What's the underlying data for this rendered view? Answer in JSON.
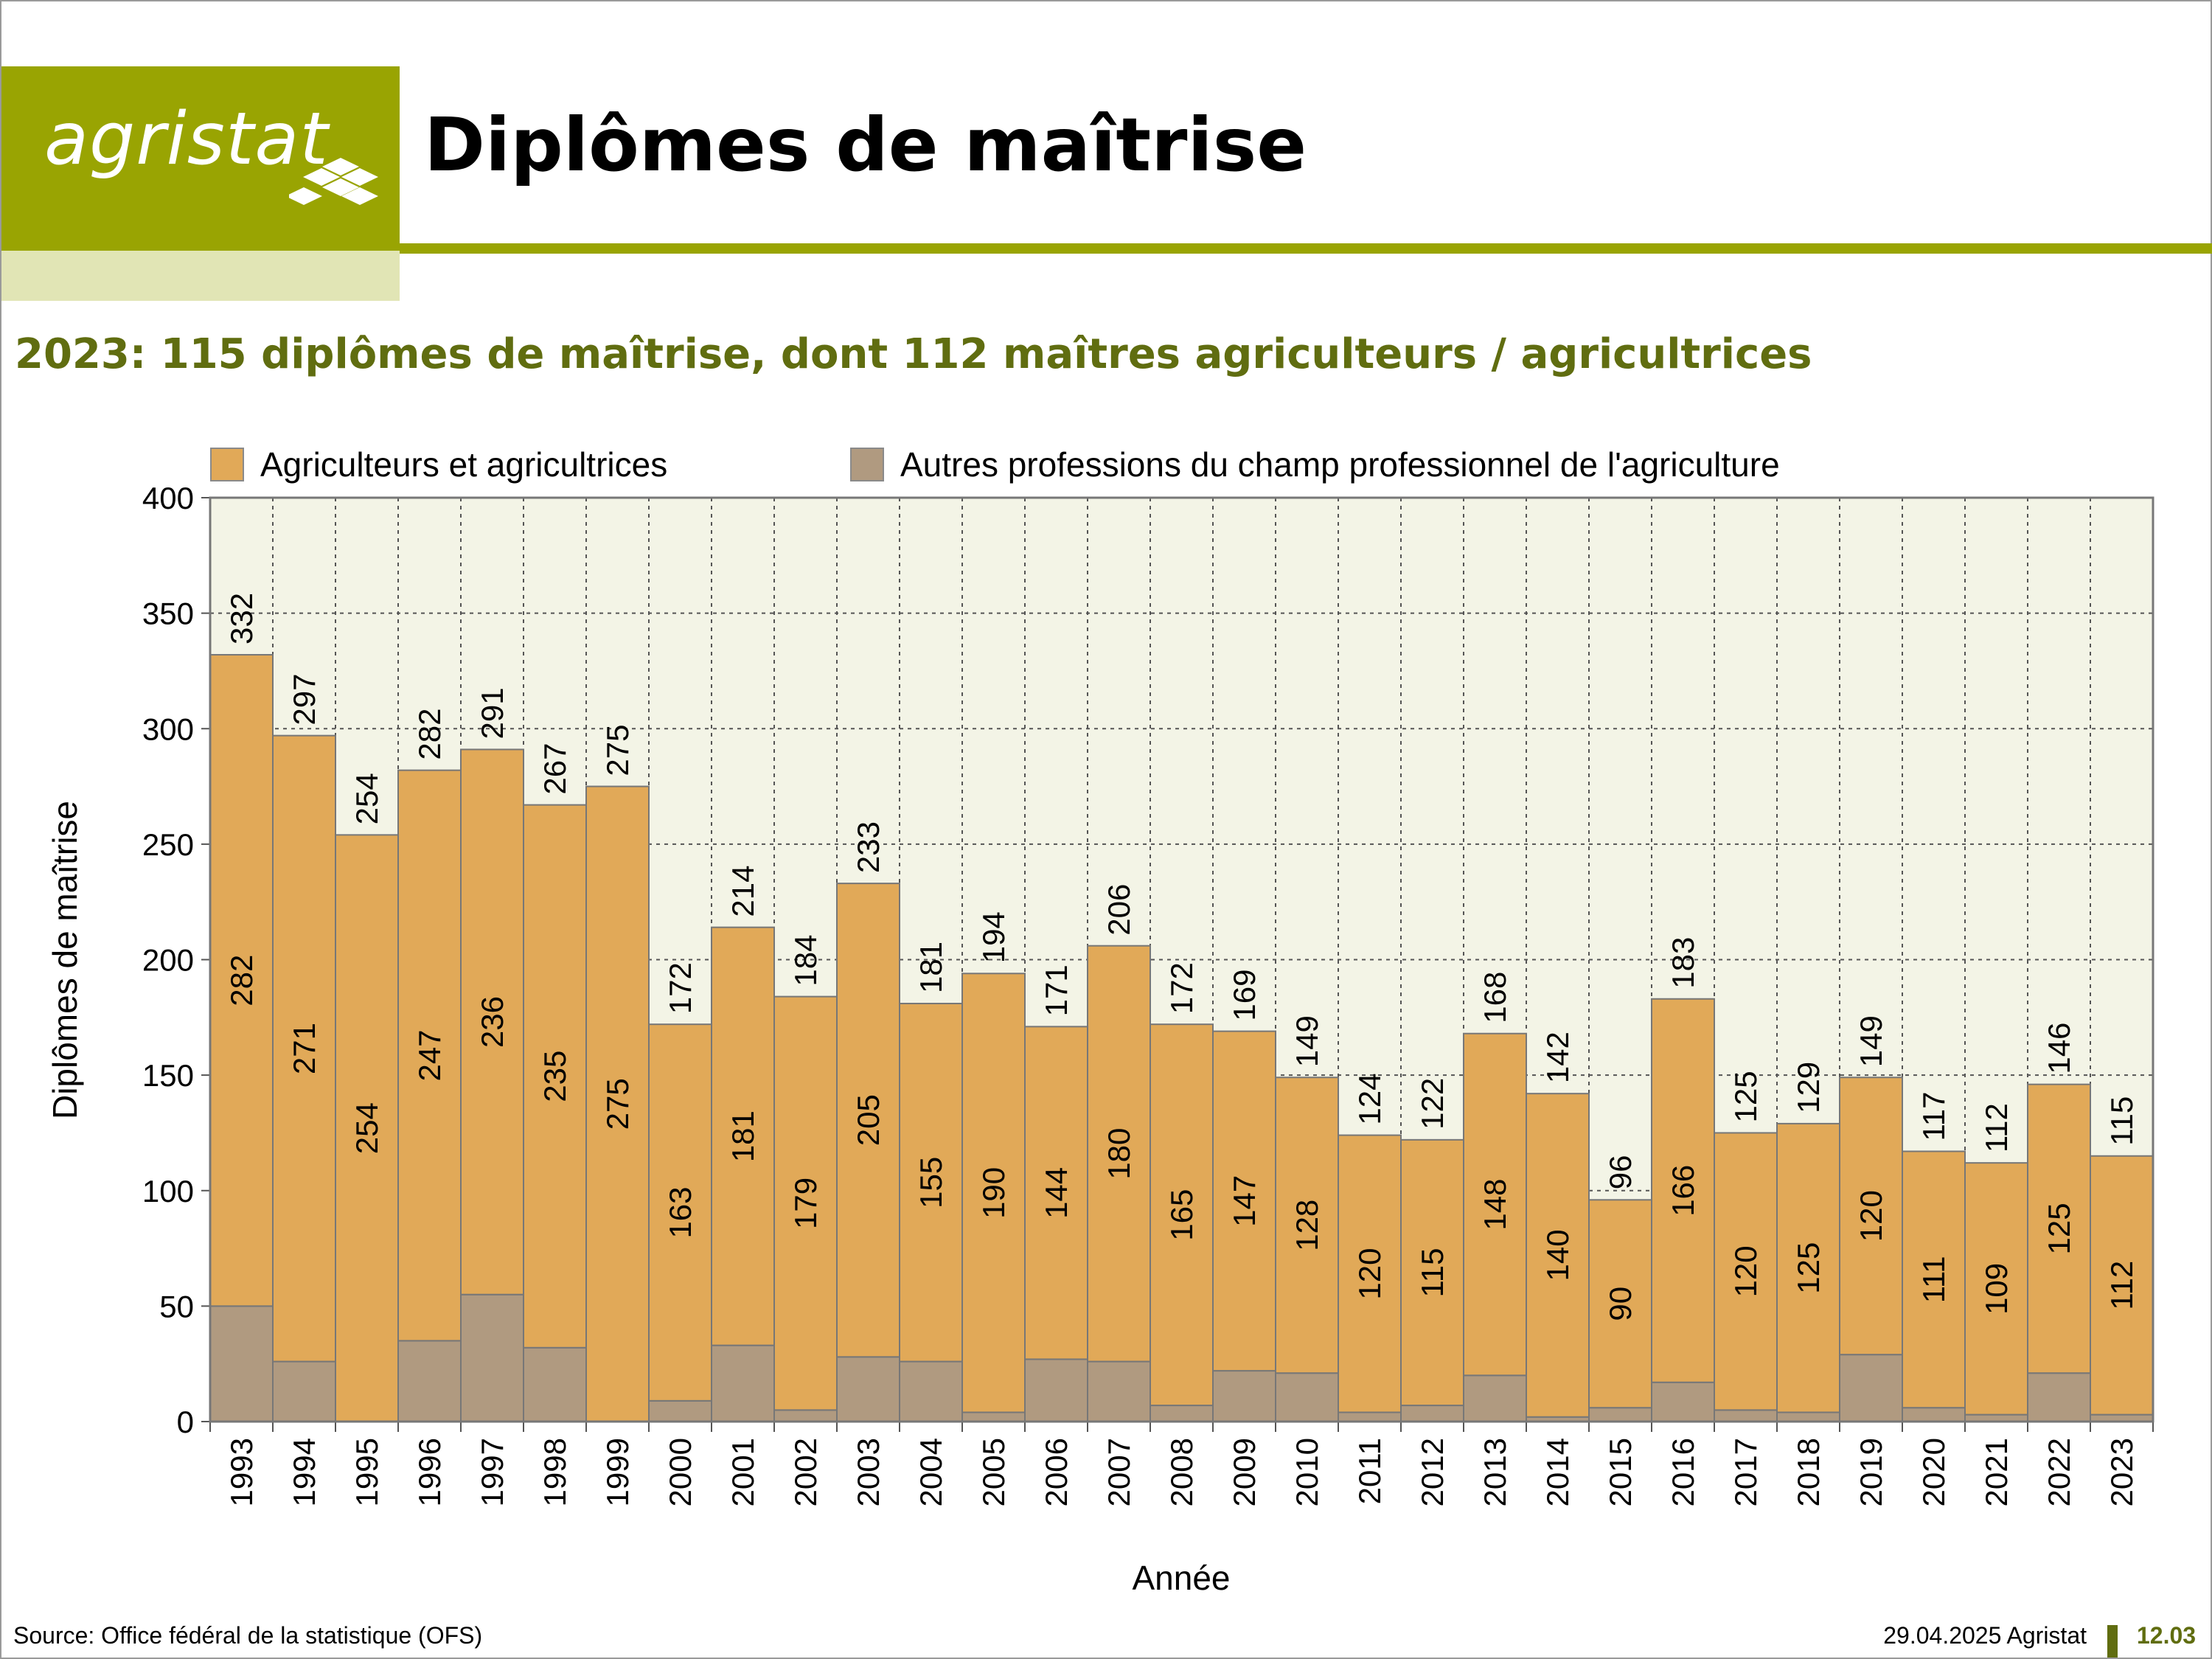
{
  "header": {
    "logo_text": "agristat",
    "title": "Diplômes de maîtrise",
    "subtitle": "2023: 115 diplômes de maîtrise, dont 112 maîtres agriculteurs / agricultrices"
  },
  "colors": {
    "brand_green": "#99a402",
    "brand_light": "#e1e5b5",
    "subtitle_green": "#606d10",
    "plot_background": "#f3f4e6",
    "series_agri": "#e1a958",
    "series_other": "#b09a80"
  },
  "footer": {
    "source": "Source: Office fédéral de la statistique (OFS)",
    "date": "29.04.2025 Agristat",
    "code": "12.03"
  },
  "chart_data": {
    "type": "bar",
    "stacked": true,
    "title": "",
    "xlabel": "Année",
    "ylabel": "Diplômes de maîtrise",
    "ylim": [
      0,
      400
    ],
    "yticks": [
      0,
      50,
      100,
      150,
      200,
      250,
      300,
      350,
      400
    ],
    "grid": true,
    "legend_position": "top",
    "categories": [
      "1993",
      "1994",
      "1995",
      "1996",
      "1997",
      "1998",
      "1999",
      "2000",
      "2001",
      "2002",
      "2003",
      "2004",
      "2005",
      "2006",
      "2007",
      "2008",
      "2009",
      "2010",
      "2011",
      "2012",
      "2013",
      "2014",
      "2015",
      "2016",
      "2017",
      "2018",
      "2019",
      "2020",
      "2021",
      "2022",
      "2023"
    ],
    "series": [
      {
        "name": "Autres professions du champ professionnel de l'agriculture",
        "color": "#b09a80",
        "values": [
          50,
          26,
          0,
          35,
          55,
          32,
          0,
          9,
          33,
          5,
          28,
          26,
          4,
          27,
          26,
          7,
          22,
          21,
          4,
          7,
          20,
          2,
          6,
          17,
          5,
          4,
          29,
          6,
          3,
          21,
          3
        ]
      },
      {
        "name": "Agriculteurs et agricultrices",
        "color": "#e1a958",
        "values": [
          282,
          271,
          254,
          247,
          236,
          235,
          275,
          163,
          181,
          179,
          205,
          155,
          190,
          144,
          180,
          165,
          147,
          128,
          120,
          115,
          148,
          140,
          90,
          166,
          120,
          125,
          120,
          111,
          109,
          125,
          112
        ]
      }
    ],
    "totals": [
      332,
      297,
      254,
      282,
      291,
      267,
      275,
      172,
      214,
      184,
      233,
      181,
      194,
      171,
      206,
      172,
      169,
      149,
      124,
      122,
      168,
      142,
      96,
      183,
      125,
      129,
      149,
      117,
      112,
      146,
      115
    ]
  }
}
